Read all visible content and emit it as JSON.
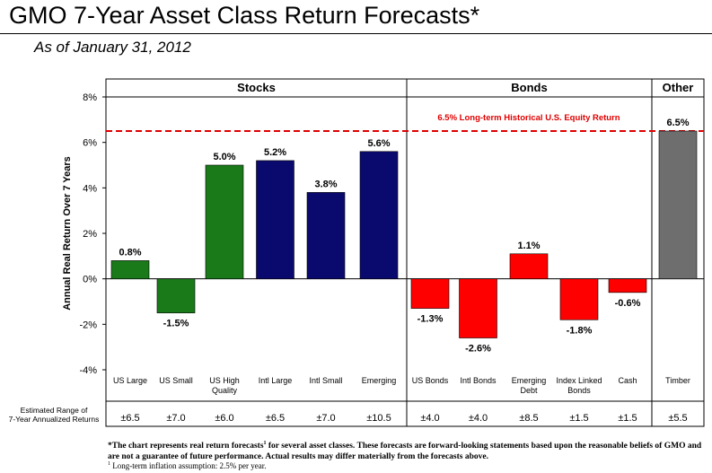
{
  "header": {
    "title": "GMO 7-Year Asset Class Return Forecasts*",
    "subtitle": "As of January 31, 2012"
  },
  "chart_data": {
    "type": "bar",
    "ylabel": "Annual Real Return Over 7 Years",
    "ylim": [
      -4,
      8
    ],
    "yticks": [
      -4,
      -2,
      0,
      2,
      4,
      6,
      8
    ],
    "ytick_labels": [
      "-4%",
      "-2%",
      "0%",
      "2%",
      "4%",
      "6%",
      "8%"
    ],
    "groups": [
      {
        "label": "Stocks",
        "count": 6
      },
      {
        "label": "Bonds",
        "count": 5
      },
      {
        "label": "Other",
        "count": 1
      }
    ],
    "categories": [
      "US Large",
      "US Small",
      "US High Quality",
      "Intl Large",
      "Intl Small",
      "Emerging",
      "US Bonds",
      "Intl Bonds",
      "Emerging Debt",
      "Index Linked Bonds",
      "Cash",
      "Timber"
    ],
    "category_lines": [
      [
        "US Large"
      ],
      [
        "US Small"
      ],
      [
        "US High",
        "Quality"
      ],
      [
        "Intl Large"
      ],
      [
        "Intl Small"
      ],
      [
        "Emerging"
      ],
      [
        "US Bonds"
      ],
      [
        "Intl Bonds"
      ],
      [
        "Emerging",
        "Debt"
      ],
      [
        "Index Linked",
        "Bonds"
      ],
      [
        "Cash"
      ],
      [
        "Timber"
      ]
    ],
    "values": [
      0.8,
      -1.5,
      5.0,
      5.2,
      3.8,
      5.6,
      -1.3,
      -2.6,
      1.1,
      -1.8,
      -0.6,
      6.5
    ],
    "value_labels": [
      "0.8%",
      "-1.5%",
      "5.0%",
      "5.2%",
      "3.8%",
      "5.6%",
      "-1.3%",
      "-2.6%",
      "1.1%",
      "-1.8%",
      "-0.6%",
      "6.5%"
    ],
    "colors": [
      "#1a7a1a",
      "#1a7a1a",
      "#1a7a1a",
      "#0a0a6e",
      "#0a0a6e",
      "#0a0a6e",
      "#ff0000",
      "#ff0000",
      "#ff0000",
      "#ff0000",
      "#ff0000",
      "#6e6e6e"
    ],
    "reference_line": {
      "value": 6.5,
      "label": "6.5% Long-term Historical U.S. Equity Return",
      "color": "#e00000"
    },
    "range_row": {
      "label_lines": [
        "Estimated Range of",
        "7-Year Annualized Returns"
      ],
      "values": [
        "±6.5",
        "±7.0",
        "±6.0",
        "±6.5",
        "±7.0",
        "±10.5",
        "±4.0",
        "±4.0",
        "±8.5",
        "±1.5",
        "±1.5",
        "±5.5"
      ]
    }
  },
  "footnote": {
    "main": "*The chart represents real return forecasts",
    "main_sup": "1",
    "main_rest": " for several asset classes.  These forecasts are forward-looking statements based upon the reasonable beliefs of GMO and are not a guarantee of future performance. Actual results may differ materially from the forecasts above.",
    "note_sup": "1",
    "note_text": "  Long-term inflation assumption:  2.5% per year."
  }
}
